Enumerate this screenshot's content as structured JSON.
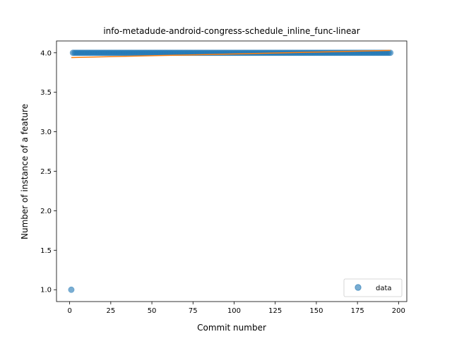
{
  "chart_data": {
    "type": "scatter",
    "title": "info-metadude-android-congress-schedule_inline_func-linear",
    "xlabel": "Commit number",
    "ylabel": "Number of instance of a feature",
    "xlim": [
      -8,
      205
    ],
    "ylim": [
      0.85,
      4.15
    ],
    "xticks": [
      0,
      25,
      50,
      75,
      100,
      125,
      150,
      175,
      200
    ],
    "yticks": [
      1.0,
      1.5,
      2.0,
      2.5,
      3.0,
      3.5,
      4.0
    ],
    "xtick_labels": [
      "0",
      "25",
      "50",
      "75",
      "100",
      "125",
      "150",
      "175",
      "200"
    ],
    "ytick_labels": [
      "1.0",
      "1.5",
      "2.0",
      "2.5",
      "3.0",
      "3.5",
      "4.0"
    ],
    "series": [
      {
        "name": "data",
        "kind": "scatter",
        "color": "#1f77b4",
        "outlier_points": [
          [
            1,
            1.0
          ]
        ],
        "x_range": [
          2,
          195
        ],
        "y_value": 4.0
      },
      {
        "kind": "line",
        "color": "#ff7f0e",
        "x": [
          1,
          195
        ],
        "y": [
          3.94,
          4.03
        ]
      }
    ],
    "legend": {
      "position": "lower-right"
    }
  }
}
